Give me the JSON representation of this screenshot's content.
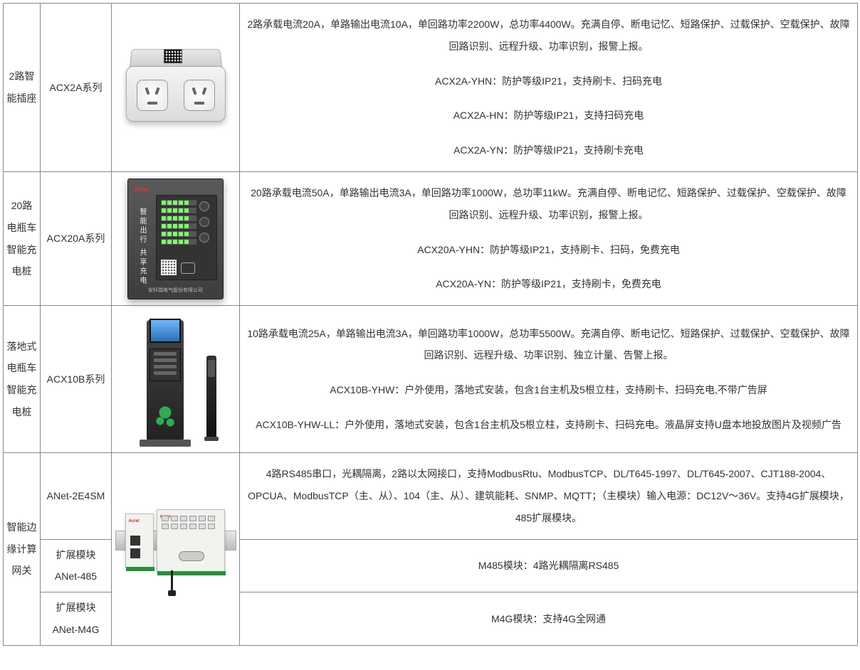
{
  "rows": [
    {
      "category": "2路智能插座",
      "model": "ACX2A系列",
      "desc": [
        "2路承载电流20A，单路输出电流10A，单回路功率2200W，总功率4400W。充满自停、断电记忆、短路保护、过载保护、空载保护、故障回路识别、远程升级、功率识别，报警上报。",
        "ACX2A-YHN：防护等级IP21，支持刷卡、扫码充电",
        "ACX2A-HN：防护等级IP21，支持扫码充电",
        "ACX2A-YN：防护等级IP21，支持刷卡充电"
      ]
    },
    {
      "category": "20路电瓶车智能充电桩",
      "model": "ACX20A系列",
      "desc": [
        "20路承载电流50A，单路输出电流3A，单回路功率1000W，总功率11kW。充满自停、断电记忆、短路保护、过载保护、空载保护、故障回路识别、远程升级、功率识别，报警上报。",
        "ACX20A-YHN：防护等级IP21，支持刷卡、扫码，免费充电",
        "ACX20A-YN：防护等级IP21，支持刷卡，免费充电"
      ]
    },
    {
      "category": "落地式电瓶车智能充电桩",
      "model": "ACX10B系列",
      "desc": [
        "10路承载电流25A，单路输出电流3A，单回路功率1000W，总功率5500W。充满自停、断电记忆、短路保护、过载保护、空载保护、故障回路识别、远程升级、功率识别、独立计量、告警上报。",
        "ACX10B-YHW：户外使用，落地式安装，包含1台主机及5根立柱，支持刷卡、扫码充电,不带广告屏",
        "ACX10B-YHW-LL：户外使用，落地式安装，包含1台主机及5根立柱，支持刷卡、扫码充电。液晶屏支持U盘本地投放图片及视频广告"
      ]
    },
    {
      "category": "智能边缘计算网关",
      "sub": [
        {
          "model": "ANet-2E4SM",
          "desc": [
            "4路RS485串口，光耦隔离，2路以太网接口，支持ModbusRtu、ModbusTCP、DL/T645-1997、DL/T645-2007、CJT188-2004、OPCUA、ModbusTCP（主、从）、104（主、从）、建筑能耗、SNMP、MQTT；（主模块）输入电源：DC12V～36V。支持4G扩展模块，485扩展模块。"
          ]
        },
        {
          "model": "扩展模块ANet-485",
          "desc": [
            "M485模块：4路光耦隔离RS485"
          ]
        },
        {
          "model": "扩展模块ANet-M4G",
          "desc": [
            "M4G模块：支持4G全网通"
          ]
        }
      ]
    }
  ]
}
